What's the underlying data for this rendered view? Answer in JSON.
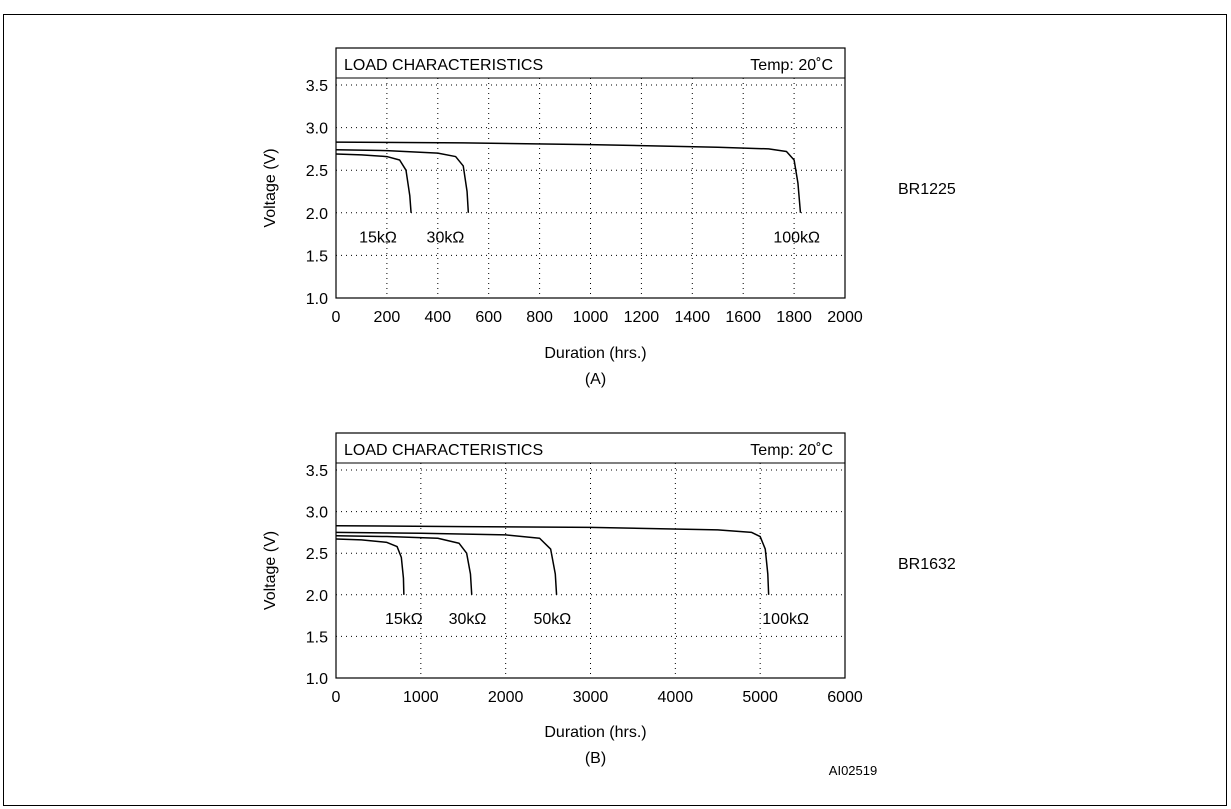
{
  "page": {
    "figure_id": "AI02519"
  },
  "chart_data": [
    {
      "type": "line",
      "title": "LOAD CHARACTERISTICS",
      "temp_label": "Temp: 20˚C",
      "xlabel": "Duration (hrs.)",
      "ylabel": "Voltage (V)",
      "panel_label": "(A)",
      "battery": "BR1225",
      "xlim": [
        0,
        2000
      ],
      "ylim": [
        1.0,
        3.5
      ],
      "xticks": [
        0,
        200,
        400,
        600,
        800,
        1000,
        1200,
        1400,
        1600,
        1800,
        2000
      ],
      "yticks": [
        "1.0",
        "1.5",
        "2.0",
        "2.5",
        "3.0",
        "3.5"
      ],
      "grid": true,
      "series": [
        {
          "name": "15kΩ",
          "label_x": 165,
          "end_x": 295,
          "x": [
            0,
            100,
            200,
            250,
            275,
            290,
            295
          ],
          "y": [
            2.69,
            2.68,
            2.66,
            2.62,
            2.5,
            2.2,
            2.0
          ]
        },
        {
          "name": "30kΩ",
          "label_x": 430,
          "end_x": 520,
          "x": [
            0,
            200,
            400,
            470,
            500,
            515,
            520
          ],
          "y": [
            2.74,
            2.73,
            2.7,
            2.66,
            2.55,
            2.25,
            2.0
          ]
        },
        {
          "name": "100kΩ",
          "label_x": 1810,
          "end_x": 1825,
          "x": [
            0,
            500,
            1000,
            1500,
            1700,
            1770,
            1800,
            1815,
            1825
          ],
          "y": [
            2.83,
            2.82,
            2.8,
            2.77,
            2.75,
            2.72,
            2.62,
            2.35,
            2.0
          ]
        }
      ]
    },
    {
      "type": "line",
      "title": "LOAD CHARACTERISTICS",
      "temp_label": "Temp: 20˚C",
      "xlabel": "Duration (hrs.)",
      "ylabel": "Voltage (V)",
      "panel_label": "(B)",
      "battery": "BR1632",
      "xlim": [
        0,
        6000
      ],
      "ylim": [
        1.0,
        3.5
      ],
      "xticks": [
        0,
        1000,
        2000,
        3000,
        4000,
        5000,
        6000
      ],
      "yticks": [
        "1.0",
        "1.5",
        "2.0",
        "2.5",
        "3.0",
        "3.5"
      ],
      "grid": true,
      "series": [
        {
          "name": "15kΩ",
          "label_x": 800,
          "end_x": 800,
          "x": [
            0,
            300,
            600,
            720,
            770,
            795,
            800
          ],
          "y": [
            2.67,
            2.66,
            2.63,
            2.58,
            2.45,
            2.2,
            2.0
          ]
        },
        {
          "name": "30kΩ",
          "label_x": 1550,
          "end_x": 1600,
          "x": [
            0,
            600,
            1200,
            1450,
            1540,
            1585,
            1600
          ],
          "y": [
            2.71,
            2.7,
            2.68,
            2.62,
            2.5,
            2.25,
            2.0
          ]
        },
        {
          "name": "50kΩ",
          "label_x": 2550,
          "end_x": 2600,
          "x": [
            0,
            1000,
            2000,
            2400,
            2530,
            2585,
            2600
          ],
          "y": [
            2.75,
            2.74,
            2.72,
            2.68,
            2.55,
            2.25,
            2.0
          ]
        },
        {
          "name": "100kΩ",
          "label_x": 5300,
          "end_x": 5100,
          "x": [
            0,
            1500,
            3000,
            4500,
            4900,
            5000,
            5060,
            5090,
            5100
          ],
          "y": [
            2.83,
            2.82,
            2.81,
            2.78,
            2.75,
            2.7,
            2.55,
            2.25,
            2.0
          ]
        }
      ]
    }
  ]
}
